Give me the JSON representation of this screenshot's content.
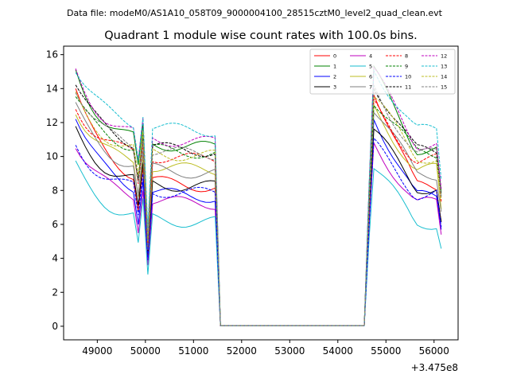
{
  "header": "Data file: modeM0/AS1A10_058T09_9000004100_28515cztM0_level2_quad_clean.evt",
  "chart_data": {
    "type": "line",
    "title": "Quadrant 1 module wise count rates with 100.0s bins.",
    "xlabel": "",
    "ylabel": "",
    "x_offset_text": "+3.475e8",
    "xlim": [
      48300,
      56500
    ],
    "ylim": [
      -0.8,
      16.5
    ],
    "x_ticks": [
      49000,
      50000,
      51000,
      52000,
      53000,
      54000,
      55000,
      56000
    ],
    "y_ticks": [
      0,
      2,
      4,
      6,
      8,
      10,
      12,
      14,
      16
    ],
    "legend_position": "top-right",
    "series": [
      {
        "name": "0",
        "color": "#ff0000",
        "dash": "solid",
        "level": 8.2,
        "peak": 14.0
      },
      {
        "name": "1",
        "color": "#008000",
        "dash": "solid",
        "level": 10.5,
        "peak": 15.0
      },
      {
        "name": "2",
        "color": "#0000ff",
        "dash": "solid",
        "level": 7.6,
        "peak": 12.4
      },
      {
        "name": "3",
        "color": "#000000",
        "dash": "solid",
        "level": 8.2,
        "peak": 11.5
      },
      {
        "name": "4",
        "color": "#bf00bf",
        "dash": "solid",
        "level": 7.2,
        "peak": 10.8
      },
      {
        "name": "5",
        "color": "#17becf",
        "dash": "solid",
        "level": 6.1,
        "peak": 9.4
      },
      {
        "name": "6",
        "color": "#bcbd22",
        "dash": "solid",
        "level": 9.2,
        "peak": 12.8
      },
      {
        "name": "7",
        "color": "#7f7f7f",
        "dash": "solid",
        "level": 9.0,
        "peak": 12.9
      },
      {
        "name": "8",
        "color": "#ff0000",
        "dash": "dashed",
        "level": 9.8,
        "peak": 13.0
      },
      {
        "name": "9",
        "color": "#008000",
        "dash": "dashed",
        "level": 10.2,
        "peak": 13.4
      },
      {
        "name": "10",
        "color": "#0000ff",
        "dash": "dashed",
        "level": 7.8,
        "peak": 10.7
      },
      {
        "name": "11",
        "color": "#000000",
        "dash": "dashed",
        "level": 10.3,
        "peak": 14.3
      },
      {
        "name": "12",
        "color": "#bf00bf",
        "dash": "dashed",
        "level": 10.8,
        "peak": 15.0
      },
      {
        "name": "13",
        "color": "#17becf",
        "dash": "dashed",
        "level": 11.5,
        "peak": 15.2
      },
      {
        "name": "14",
        "color": "#bcbd22",
        "dash": "dashed",
        "level": 10.0,
        "peak": 13.5
      },
      {
        "name": "15",
        "color": "#7f7f7f",
        "dash": "dashed",
        "level": 10.1,
        "peak": 14.1
      }
    ]
  }
}
